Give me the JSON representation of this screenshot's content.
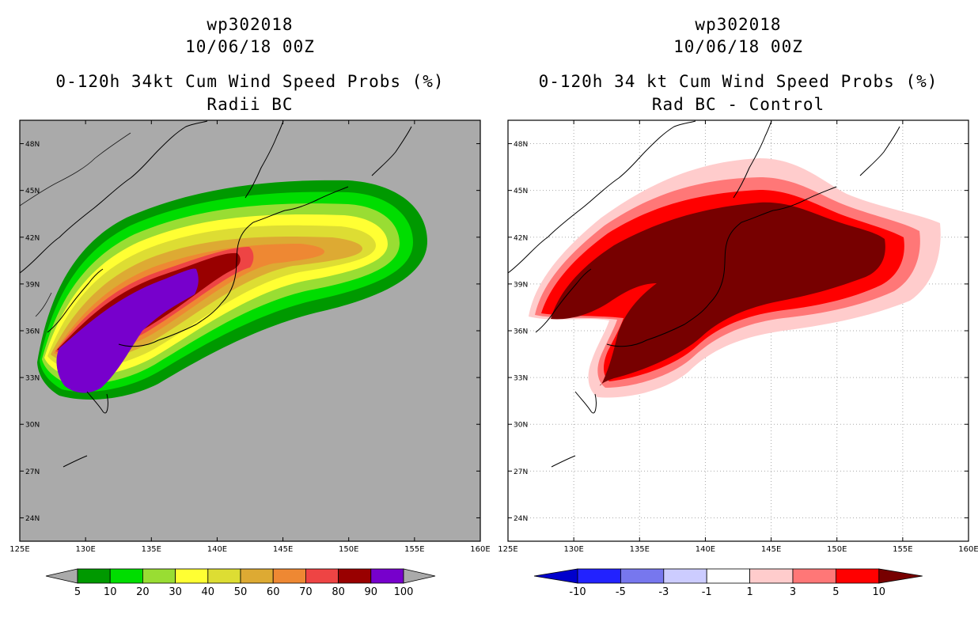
{
  "chart_data": [
    {
      "type": "heatmap",
      "title_lines": [
        "wp302018",
        "10/06/18 00Z",
        "0-120h 34kt Cum Wind Speed Probs (%)",
        "Radii BC"
      ],
      "x_ticks": [
        "125E",
        "130E",
        "135E",
        "140E",
        "145E",
        "150E",
        "155E",
        "160E"
      ],
      "y_ticks": [
        "24N",
        "27N",
        "30N",
        "33N",
        "36N",
        "39N",
        "42N",
        "45N",
        "48N"
      ],
      "xlim": [
        125,
        160
      ],
      "ylim": [
        22.5,
        49.5
      ],
      "legend_labels": [
        "5",
        "10",
        "20",
        "30",
        "40",
        "50",
        "60",
        "70",
        "80",
        "90",
        "100"
      ],
      "legend_colors": [
        "#009900",
        "#00dd00",
        "#99dd33",
        "#ffff33",
        "#dddd33",
        "#ddaa33",
        "#ee8833",
        "#ee4444",
        "#990000",
        "#7700cc"
      ],
      "background": "#aaaaaa"
    },
    {
      "type": "heatmap",
      "title_lines": [
        "wp302018",
        "10/06/18 00Z",
        "0-120h 34 kt Cum Wind Speed Probs (%)",
        "Rad BC - Control"
      ],
      "x_ticks": [
        "125E",
        "130E",
        "135E",
        "140E",
        "145E",
        "150E",
        "155E",
        "160E"
      ],
      "y_ticks": [
        "24N",
        "27N",
        "30N",
        "33N",
        "36N",
        "39N",
        "42N",
        "45N",
        "48N"
      ],
      "xlim": [
        125,
        160
      ],
      "ylim": [
        22.5,
        49.5
      ],
      "legend_labels": [
        "-10",
        "-5",
        "-3",
        "-1",
        "1",
        "3",
        "5",
        "10"
      ],
      "legend_colors": [
        "#0000cc",
        "#2222ff",
        "#7777ee",
        "#ccccff",
        "#ffffff",
        "#ffcccc",
        "#ff7777",
        "#ff0000",
        "#770000"
      ],
      "background": "#ffffff"
    }
  ]
}
